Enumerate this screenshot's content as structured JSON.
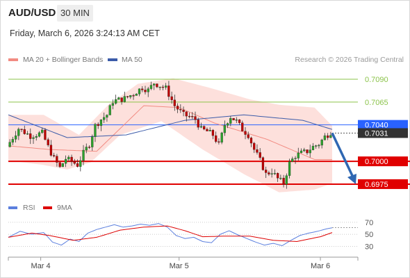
{
  "header": {
    "symbol": "AUD/USD",
    "timeframe": "30 MIN",
    "timestamp": "Friday, March 6, 2026 3:24:13 AM CET"
  },
  "legend": {
    "ma20_label": "MA 20 + Bollinger Bands",
    "ma50_label": "MA 50",
    "rsi_label": "RSI",
    "ma9_label": "9MA",
    "copyright": "Research © 2026 Trading Central"
  },
  "colors": {
    "bull": "#2ca02c",
    "bear": "#c00000",
    "ma20": "#f28b82",
    "bands": "#fde0dc",
    "ma50": "#3b5ba9",
    "level_green": "#8bc34a",
    "level_red": "#e00000",
    "current_line": "#2962ff",
    "arrow": "#2f67b2",
    "rsi": "#5b7fde",
    "ma9": "#dd0000"
  },
  "chart_data": [
    {
      "type": "candlestick",
      "title": "AUD/USD 30 MIN",
      "x_tick_labels": [
        "Mar 4",
        "Mar 5",
        "Mar 6"
      ],
      "ylim": [
        0.6962,
        0.7103
      ],
      "series_legend": [
        "MA 20 + Bollinger Bands",
        "MA 50"
      ],
      "levels": [
        {
          "label": "0.7090",
          "value": 0.709,
          "style": "resistance"
        },
        {
          "label": "0.7065",
          "value": 0.7065,
          "style": "resistance"
        },
        {
          "label": "0.7040",
          "value": 0.704,
          "style": "pivot"
        },
        {
          "label": "0.7031",
          "value": 0.7031,
          "style": "last_price"
        },
        {
          "label": "0.7000",
          "value": 0.7,
          "style": "support"
        },
        {
          "label": "0.6975",
          "value": 0.6975,
          "style": "support"
        }
      ],
      "last_price": 0.7031,
      "forecast": {
        "direction": "down",
        "from": 0.7031,
        "to": 0.6975
      },
      "close_path": {
        "points": [
          [
            0,
            0.7016
          ],
          [
            4,
            0.7036
          ],
          [
            8,
            0.7028
          ],
          [
            12,
            0.7031
          ],
          [
            14,
            0.7016
          ],
          [
            16,
            0.7003
          ],
          [
            18,
            0.6993
          ],
          [
            20,
            0.7003
          ],
          [
            22,
            0.7
          ],
          [
            24,
            0.6996
          ],
          [
            26,
            0.7009
          ],
          [
            28,
            0.7019
          ],
          [
            30,
            0.7039
          ],
          [
            32,
            0.7046
          ],
          [
            34,
            0.7051
          ],
          [
            36,
            0.7066
          ],
          [
            40,
            0.7069
          ],
          [
            43,
            0.7074
          ],
          [
            46,
            0.7081
          ],
          [
            48,
            0.7078
          ],
          [
            50,
            0.7086
          ],
          [
            52,
            0.7083
          ],
          [
            54,
            0.708
          ],
          [
            57,
            0.7061
          ],
          [
            60,
            0.7051
          ],
          [
            62,
            0.7049
          ],
          [
            64,
            0.7046
          ],
          [
            66,
            0.7035
          ],
          [
            68,
            0.7033
          ],
          [
            70,
            0.7029
          ],
          [
            72,
            0.7018
          ],
          [
            74,
            0.704
          ],
          [
            76,
            0.7049
          ],
          [
            78,
            0.7044
          ],
          [
            80,
            0.7035
          ],
          [
            82,
            0.7029
          ],
          [
            84,
            0.7013
          ],
          [
            86,
            0.7001
          ],
          [
            88,
            0.6986
          ],
          [
            90,
            0.6989
          ],
          [
            92,
            0.6981
          ],
          [
            94,
            0.6976
          ],
          [
            96,
            0.6998
          ],
          [
            98,
            0.7006
          ],
          [
            100,
            0.7009
          ],
          [
            102,
            0.7011
          ],
          [
            104,
            0.7016
          ],
          [
            106,
            0.7019
          ],
          [
            108,
            0.7027
          ],
          [
            110,
            0.7032
          ]
        ],
        "candle_count": 110
      },
      "ma50": [
        [
          0,
          0.7051
        ],
        [
          20,
          0.7026
        ],
        [
          40,
          0.7029
        ],
        [
          60,
          0.7045
        ],
        [
          80,
          0.7051
        ],
        [
          100,
          0.7045
        ],
        [
          110,
          0.7035
        ]
      ],
      "ma20": [
        [
          0,
          0.7017
        ],
        [
          14,
          0.7013
        ],
        [
          30,
          0.7011
        ],
        [
          46,
          0.7061
        ],
        [
          58,
          0.7059
        ],
        [
          70,
          0.7042
        ],
        [
          88,
          0.7024
        ],
        [
          104,
          0.7002
        ],
        [
          110,
          0.7002
        ]
      ],
      "bollinger_upper": [
        [
          0,
          0.7051
        ],
        [
          12,
          0.7051
        ],
        [
          24,
          0.7029
        ],
        [
          34,
          0.7062
        ],
        [
          44,
          0.7085
        ],
        [
          56,
          0.7091
        ],
        [
          68,
          0.7081
        ],
        [
          82,
          0.7068
        ],
        [
          92,
          0.7062
        ],
        [
          104,
          0.7059
        ],
        [
          110,
          0.7039
        ]
      ],
      "bollinger_lower": [
        [
          0,
          0.7001
        ],
        [
          12,
          0.6996
        ],
        [
          20,
          0.6991
        ],
        [
          28,
          0.6999
        ],
        [
          38,
          0.7029
        ],
        [
          52,
          0.7044
        ],
        [
          66,
          0.7013
        ],
        [
          80,
          0.6986
        ],
        [
          92,
          0.6966
        ],
        [
          104,
          0.6969
        ],
        [
          110,
          0.6976
        ]
      ]
    },
    {
      "type": "line",
      "title": "RSI",
      "series": [
        {
          "name": "RSI",
          "color": "#5b7fde",
          "points": [
            [
              0,
              45
            ],
            [
              4,
              55
            ],
            [
              8,
              50
            ],
            [
              12,
              53
            ],
            [
              15,
              37
            ],
            [
              18,
              32
            ],
            [
              21,
              42
            ],
            [
              24,
              38
            ],
            [
              27,
              52
            ],
            [
              30,
              58
            ],
            [
              33,
              62
            ],
            [
              36,
              66
            ],
            [
              39,
              62
            ],
            [
              42,
              64
            ],
            [
              45,
              67
            ],
            [
              48,
              65
            ],
            [
              51,
              68
            ],
            [
              54,
              62
            ],
            [
              57,
              48
            ],
            [
              60,
              43
            ],
            [
              63,
              45
            ],
            [
              66,
              38
            ],
            [
              69,
              36
            ],
            [
              72,
              50
            ],
            [
              75,
              56
            ],
            [
              78,
              49
            ],
            [
              81,
              43
            ],
            [
              84,
              37
            ],
            [
              87,
              32
            ],
            [
              90,
              35
            ],
            [
              93,
              31
            ],
            [
              96,
              40
            ],
            [
              99,
              48
            ],
            [
              102,
              52
            ],
            [
              105,
              55
            ],
            [
              108,
              59
            ],
            [
              110,
              61
            ]
          ]
        },
        {
          "name": "9MA",
          "color": "#dd0000",
          "points": [
            [
              0,
              45
            ],
            [
              8,
              52
            ],
            [
              14,
              48
            ],
            [
              22,
              40
            ],
            [
              30,
              45
            ],
            [
              38,
              57
            ],
            [
              46,
              62
            ],
            [
              54,
              64
            ],
            [
              60,
              56
            ],
            [
              66,
              46
            ],
            [
              74,
              47
            ],
            [
              82,
              47
            ],
            [
              90,
              40
            ],
            [
              98,
              38
            ],
            [
              106,
              46
            ],
            [
              110,
              53
            ]
          ]
        }
      ],
      "ylim": [
        20,
        78
      ],
      "y_ticks": [
        70,
        50,
        30
      ]
    }
  ]
}
